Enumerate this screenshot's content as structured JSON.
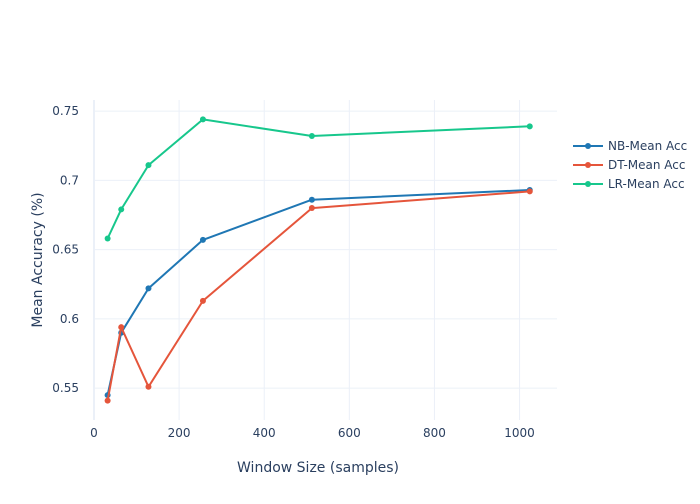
{
  "chart_data": {
    "type": "line",
    "title": "",
    "xlabel": "Window Size (samples)",
    "ylabel": "Mean Accuracy (%)",
    "xlim": [
      0,
      1088
    ],
    "ylim": [
      0.527,
      0.758
    ],
    "x_ticks": [
      0,
      200,
      400,
      600,
      800,
      1000
    ],
    "y_ticks": [
      0.55,
      0.6,
      0.65,
      0.7,
      0.75
    ],
    "grid": true,
    "legend_position": "right",
    "x": [
      32,
      64,
      128,
      256,
      512,
      1024
    ],
    "series": [
      {
        "name": "NB-Mean Acc",
        "color": "#1f77b4",
        "values": [
          0.545,
          0.59,
          0.622,
          0.657,
          0.686,
          0.693
        ]
      },
      {
        "name": "DT-Mean Acc",
        "color": "#e5553b",
        "values": [
          0.541,
          0.594,
          0.551,
          0.613,
          0.68,
          0.692
        ]
      },
      {
        "name": "LR-Mean Acc",
        "color": "#17c78c",
        "values": [
          0.658,
          0.679,
          0.711,
          0.744,
          0.732,
          0.739
        ]
      }
    ]
  }
}
